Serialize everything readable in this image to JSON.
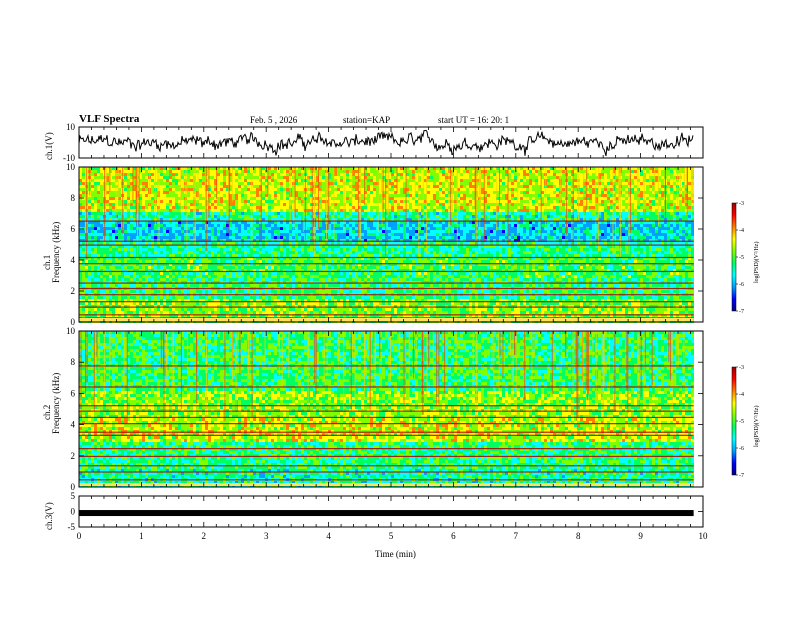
{
  "header": {
    "title": "VLF Spectra",
    "date": "Feb. 5 , 2026",
    "station": "station=KAP",
    "start": "start UT =  16: 20: 1"
  },
  "colors": {
    "spectrum_stops": [
      "#000080",
      "#0000ff",
      "#00a0ff",
      "#00ffff",
      "#00ff60",
      "#80ff00",
      "#ffff00",
      "#ff8000",
      "#ff0000",
      "#a00000"
    ],
    "trace": "#000000",
    "band": "#000000"
  },
  "chart_data": [
    {
      "type": "line",
      "name": "ch1-waveform",
      "ylabel": "ch.1(V)",
      "ylim": [
        -10,
        10
      ],
      "yticks": [
        "10",
        "-10"
      ],
      "x_unit": "min",
      "xlim": [
        0,
        10
      ],
      "trace_end": 9.85,
      "description_values": "noisy waveform oscillating roughly between -8 and 8 V"
    },
    {
      "type": "heatmap",
      "name": "ch1-spectrogram",
      "ylabel": "ch.1\nFrequency (kHz)",
      "ylabel_line1": "ch.1",
      "ylabel_line2": "Frequency (kHz)",
      "ylim": [
        0,
        10
      ],
      "yticks": [
        "0",
        "2",
        "4",
        "6",
        "8",
        "10"
      ],
      "xlim": [
        0,
        10
      ],
      "data_end": 9.85,
      "bands_khz": [
        0.3,
        0.5,
        1.0,
        1.35,
        1.8,
        2.2,
        2.55,
        3.3,
        3.8,
        4.2,
        5.0,
        5.25,
        6.55
      ],
      "colorbar": {
        "label": "log(PSD)(V²/Hz)",
        "range": [
          -7,
          -3
        ],
        "ticks": [
          "-3",
          "-4",
          "-5",
          "-6",
          "-7"
        ]
      }
    },
    {
      "type": "heatmap",
      "name": "ch2-spectrogram",
      "ylabel_line1": "ch.2",
      "ylabel_line2": "Frequency (kHz)",
      "ylim": [
        0,
        10
      ],
      "yticks": [
        "0",
        "2",
        "4",
        "6",
        "8",
        "10"
      ],
      "xlim": [
        0,
        10
      ],
      "data_end": 9.85,
      "bands_khz": [
        0.2,
        0.5,
        1.0,
        1.4,
        2.0,
        2.5,
        3.35,
        3.55,
        4.1,
        4.5,
        4.9,
        5.25,
        6.45,
        7.8
      ],
      "colorbar": {
        "label": "log(PSD)(V²/Hz)",
        "range": [
          -7,
          -3
        ],
        "ticks": [
          "-3",
          "-4",
          "-5",
          "-6",
          "-7"
        ]
      }
    },
    {
      "type": "line",
      "name": "ch3-waveform",
      "ylabel": "ch.3(V)",
      "ylim": [
        -5,
        5
      ],
      "yticks": [
        "5",
        "0",
        "-5"
      ],
      "xlim": [
        0,
        10
      ],
      "constant_value": -0.5,
      "trace_end": 9.85
    }
  ],
  "xaxis": {
    "label": "Time (min)",
    "ticks": [
      "0",
      "1",
      "2",
      "3",
      "4",
      "5",
      "6",
      "7",
      "8",
      "9",
      "10"
    ]
  }
}
